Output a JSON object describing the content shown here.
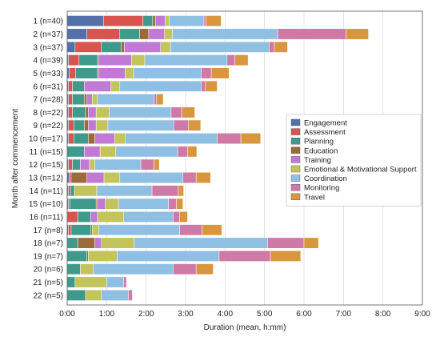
{
  "chart_data": {
    "type": "bar",
    "orientation": "horizontal",
    "stacked": true,
    "xlabel": "Duration (mean, h:mm)",
    "ylabel": "Month after commencement",
    "xlim": [
      0,
      540
    ],
    "x_unit": "minutes",
    "xticks": [
      0,
      60,
      120,
      180,
      240,
      300,
      360,
      420,
      480,
      540
    ],
    "xtick_labels": [
      "0:00",
      "1:00",
      "2:00",
      "3:00",
      "4:00",
      "5:00",
      "6:00",
      "7:00",
      "8:00",
      "9:00"
    ],
    "grid": "vertical",
    "legend_position": "right",
    "categories": [
      "1 (n=40)",
      "2 (n=37)",
      "3 (n=37)",
      "4 (n=39)",
      "5 (n=33)",
      "6 (n=31)",
      "7 (n=28)",
      "8 (n=22)",
      "9 (n=22)",
      "10 (n=17)",
      "11 (n=15)",
      "12 (n=15)",
      "13 (n=12)",
      "14 (n=11)",
      "15 (n=10)",
      "16 (n=11)",
      "17 (n=8)",
      "18 (n=7)",
      "19 (n=7)",
      "20 (n=6)",
      "21 (n=5)",
      "22 (n=5)"
    ],
    "series": [
      {
        "name": "Engagement",
        "color": "#5470ab",
        "values": [
          55,
          30,
          12,
          2,
          3,
          2,
          2,
          2,
          2,
          2,
          0,
          2,
          3,
          2,
          2,
          0,
          2,
          0,
          0,
          0,
          0,
          0
        ]
      },
      {
        "name": "Assessment",
        "color": "#d9534f",
        "values": [
          60,
          50,
          40,
          16,
          10,
          6,
          6,
          6,
          8,
          8,
          0,
          6,
          3,
          3,
          2,
          16,
          4,
          0,
          0,
          0,
          0,
          0
        ]
      },
      {
        "name": "Planning",
        "color": "#3f9a8b",
        "values": [
          15,
          30,
          30,
          28,
          33,
          18,
          18,
          20,
          16,
          22,
          26,
          12,
          0,
          6,
          40,
          20,
          30,
          16,
          30,
          20,
          12,
          28
        ]
      },
      {
        "name": "Education",
        "color": "#9a6a3a",
        "values": [
          4,
          14,
          5,
          2,
          2,
          0,
          4,
          4,
          6,
          10,
          0,
          0,
          24,
          0,
          2,
          0,
          2,
          26,
          2,
          0,
          0,
          0
        ]
      },
      {
        "name": "Training",
        "color": "#c07ad6",
        "values": [
          15,
          24,
          55,
          50,
          40,
          40,
          8,
          12,
          12,
          30,
          24,
          14,
          26,
          0,
          12,
          10,
          0,
          10,
          0,
          0,
          0,
          0
        ]
      },
      {
        "name": "Emotional & Motivational Support",
        "color": "#c3c45c",
        "values": [
          6,
          12,
          15,
          20,
          13,
          14,
          8,
          20,
          18,
          16,
          24,
          8,
          24,
          34,
          20,
          40,
          10,
          50,
          44,
          20,
          48,
          24
        ]
      },
      {
        "name": "Coordination",
        "color": "#8fc0e3",
        "values": [
          53,
          160,
          150,
          125,
          103,
          124,
          86,
          94,
          100,
          140,
          94,
          70,
          96,
          84,
          76,
          75,
          123,
          203,
          155,
          121,
          26,
          41
        ]
      },
      {
        "name": "Monitoring",
        "color": "#cf79a6",
        "values": [
          3,
          104,
          8,
          12,
          15,
          6,
          4,
          16,
          22,
          36,
          15,
          20,
          20,
          40,
          12,
          10,
          34,
          55,
          78,
          35,
          4,
          6
        ]
      },
      {
        "name": "Travel",
        "color": "#d8963f",
        "values": [
          23,
          34,
          20,
          20,
          27,
          18,
          10,
          20,
          19,
          30,
          14,
          8,
          22,
          8,
          10,
          12,
          30,
          22,
          46,
          26,
          0,
          0
        ]
      }
    ]
  }
}
